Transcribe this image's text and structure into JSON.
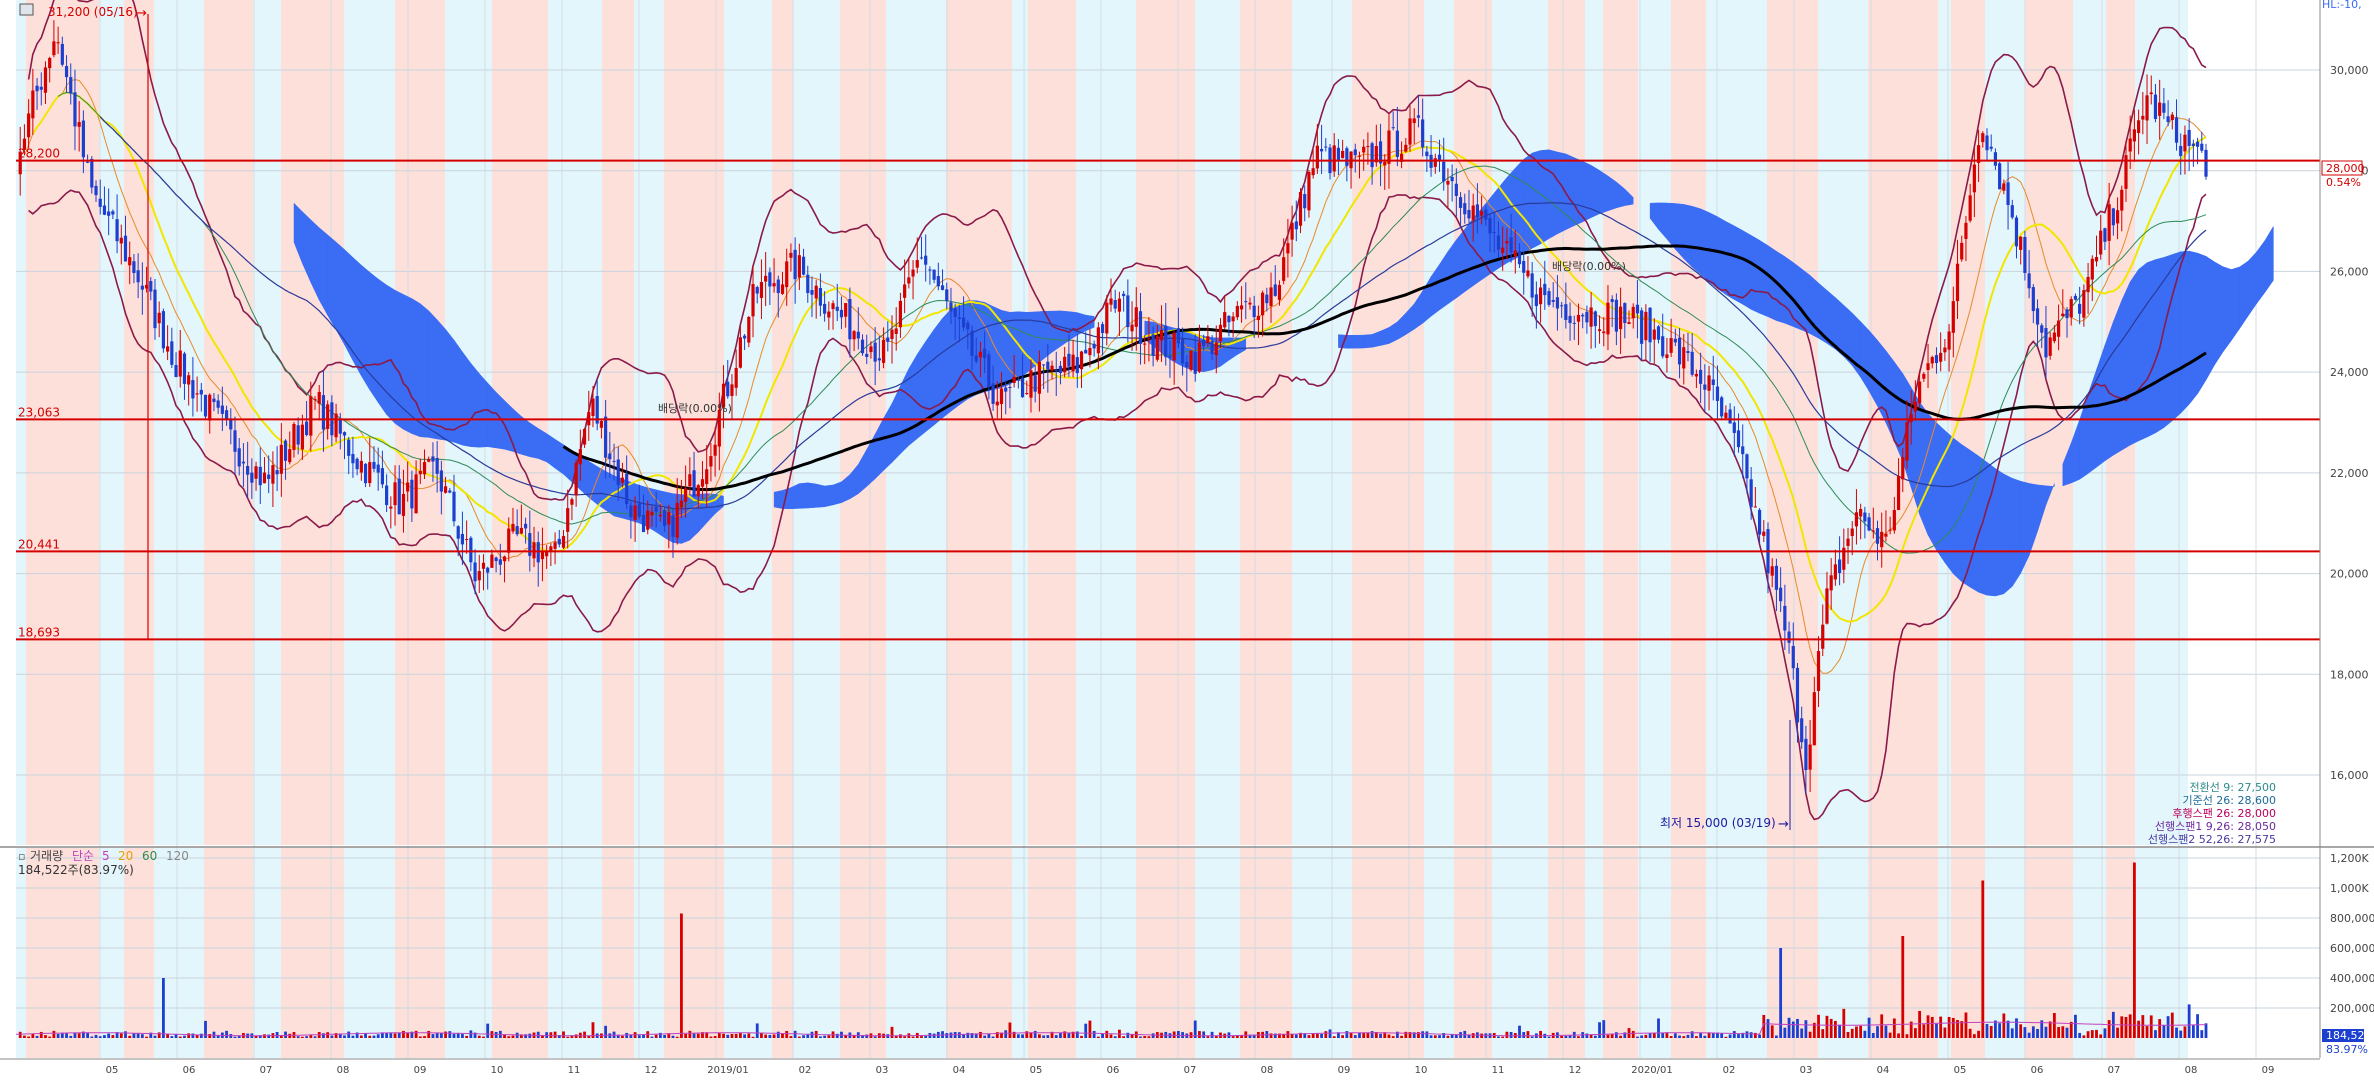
{
  "colors": {
    "bg": "#ffffff",
    "band_light": "#e3f6fb",
    "band_pink": "#fde0da",
    "cloud": "#3a6cf4",
    "hline": "#d40000",
    "candle_up": "#d50000",
    "candle_down": "#1d3fd0",
    "bollinger": "#8a1a4a",
    "ma_black": "#000000",
    "ma_yellow": "#f2e600",
    "ma_green": "#2e8b57",
    "ma_orange": "#e88a2a",
    "ma_navy": "#2a3a9a",
    "label_blue": "#1a1aa0"
  },
  "header": {
    "icon": "chart-window-icon",
    "high_label": "31,200 (05/16)",
    "top_right_label": "HL:-10,"
  },
  "price_axis": {
    "ticks": [
      "30,000",
      "28,000",
      "26,000",
      "24,000",
      "22,000",
      "20,000",
      "18,000",
      "16,000"
    ],
    "current_price": "28,000",
    "current_change": "0.54%"
  },
  "hlines": [
    {
      "value": 28200,
      "label": "28,200"
    },
    {
      "value": 23063,
      "label": "23,063"
    },
    {
      "value": 20441,
      "label": "20,441"
    },
    {
      "value": 18693,
      "label": "18,693"
    }
  ],
  "annotations": {
    "low_label": "최저 15,000 (03/19)",
    "dividend_1": "배당락(0.00%)",
    "dividend_2": "배당락(0.00%)"
  },
  "ichimoku_legend": [
    "전환선 9: 27,500",
    "기준선 26: 28,600",
    "후행스팬 26: 28,000",
    "선행스팬1 9,26: 28,050",
    "선행스팬2 52,26: 27,575"
  ],
  "volume_panel": {
    "legend_title": "거래량",
    "legend_type": "단순",
    "legend_periods": [
      "5",
      "20",
      "60",
      "120"
    ],
    "summary": "184,522주(83.97%)",
    "axis_ticks": [
      "1,200K",
      "1,000K",
      "800,000",
      "600,000",
      "400,000",
      "200,000"
    ],
    "current_volume": "184,522",
    "current_ratio": "83.97%"
  },
  "date_axis_labels": [
    "05",
    "06",
    "07",
    "08",
    "09",
    "10",
    "11",
    "12",
    "2019/01",
    "02",
    "03",
    "04",
    "05",
    "06",
    "07",
    "08",
    "09",
    "10",
    "11",
    "12",
    "2020/01",
    "02",
    "03",
    "04",
    "05",
    "06",
    "07",
    "08",
    "09"
  ],
  "chart_data": {
    "type": "candlestick",
    "y_range": [
      15000,
      31200
    ],
    "y_ticks": [
      16000,
      18000,
      20000,
      22000,
      24000,
      26000,
      28000,
      30000
    ],
    "high": {
      "value": 31200,
      "date": "05/16"
    },
    "low": {
      "value": 15000,
      "date": "03/19"
    },
    "price_path": [
      [
        0,
        28200
      ],
      [
        40,
        30800
      ],
      [
        75,
        27600
      ],
      [
        120,
        26000
      ],
      [
        160,
        24200
      ],
      [
        210,
        22800
      ],
      [
        250,
        21800
      ],
      [
        300,
        23400
      ],
      [
        340,
        22300
      ],
      [
        385,
        21400
      ],
      [
        420,
        22100
      ],
      [
        460,
        19900
      ],
      [
        500,
        20700
      ],
      [
        540,
        20300
      ],
      [
        575,
        23400
      ],
      [
        615,
        21300
      ],
      [
        650,
        20800
      ],
      [
        690,
        22300
      ],
      [
        740,
        25600
      ],
      [
        780,
        26100
      ],
      [
        820,
        25200
      ],
      [
        870,
        24300
      ],
      [
        905,
        26400
      ],
      [
        940,
        24900
      ],
      [
        985,
        23400
      ],
      [
        1020,
        23900
      ],
      [
        1060,
        24100
      ],
      [
        1100,
        25400
      ],
      [
        1140,
        24600
      ],
      [
        1180,
        24300
      ],
      [
        1220,
        25100
      ],
      [
        1260,
        25700
      ],
      [
        1300,
        28300
      ],
      [
        1340,
        28100
      ],
      [
        1400,
        28800
      ],
      [
        1440,
        27700
      ],
      [
        1490,
        26300
      ],
      [
        1530,
        25400
      ],
      [
        1570,
        25200
      ],
      [
        1610,
        25100
      ],
      [
        1650,
        24600
      ],
      [
        1690,
        23800
      ],
      [
        1720,
        22500
      ],
      [
        1745,
        20800
      ],
      [
        1770,
        18800
      ],
      [
        1790,
        16300
      ],
      [
        1810,
        19400
      ],
      [
        1840,
        21200
      ],
      [
        1870,
        20600
      ],
      [
        1900,
        23600
      ],
      [
        1935,
        25000
      ],
      [
        1965,
        29100
      ],
      [
        1995,
        27200
      ],
      [
        2030,
        24500
      ],
      [
        2070,
        25600
      ],
      [
        2105,
        27700
      ],
      [
        2130,
        29500
      ],
      [
        2160,
        28700
      ],
      [
        2190,
        28200
      ]
    ],
    "volume_spikes": [
      {
        "x": 147,
        "value": 400000
      },
      {
        "x": 665,
        "value": 830000
      },
      {
        "x": 1765,
        "value": 600000
      },
      {
        "x": 1885,
        "value": 680000
      },
      {
        "x": 1968,
        "value": 1050000
      },
      {
        "x": 2120,
        "value": 1170000
      }
    ]
  }
}
